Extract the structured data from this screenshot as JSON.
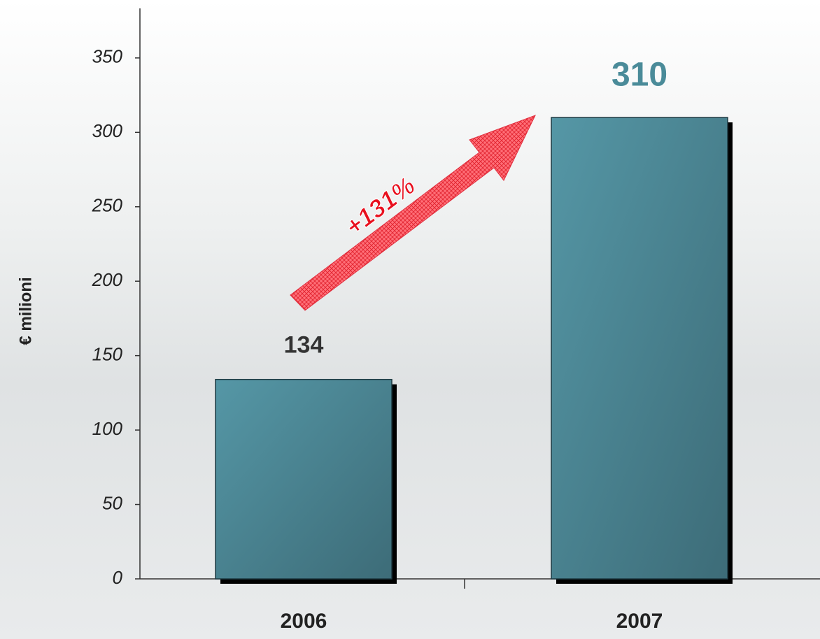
{
  "chart_data": {
    "type": "bar",
    "y_label": "€ milioni",
    "categories": [
      "2006",
      "2007"
    ],
    "values": [
      134,
      310
    ],
    "color": "#4a8b99",
    "annotation": "+131%",
    "ylim": [
      0,
      380
    ],
    "yticks": [
      0,
      50,
      100,
      150,
      200,
      250,
      300,
      350
    ],
    "grid": false
  }
}
